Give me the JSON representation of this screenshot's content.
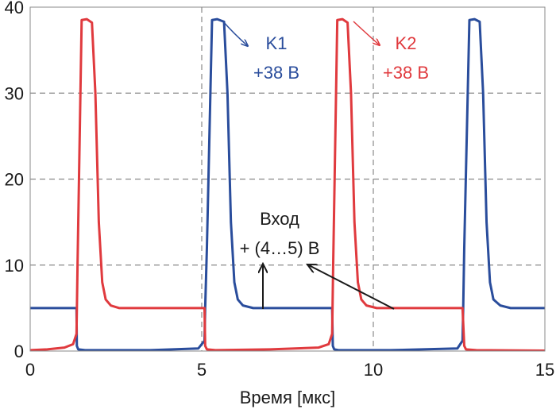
{
  "chart_data": {
    "type": "line",
    "title": "",
    "xlabel": "Время [мкс]",
    "ylabel": "",
    "xlim": [
      0,
      15
    ],
    "ylim": [
      0,
      40
    ],
    "x_ticks": [
      "0",
      "5",
      "10",
      "15"
    ],
    "y_ticks": [
      "0",
      "10",
      "20",
      "30",
      "40"
    ],
    "grid": true,
    "colors": {
      "series_1": "#2a4d9c",
      "series_2": "#e03a3e",
      "annotation_input": "#1a1a1a"
    },
    "series": [
      {
        "x": [
          0,
          1.35,
          1.36,
          1.4,
          1.6,
          3.5,
          4.9,
          5.08,
          5.1,
          5.15,
          5.3,
          5.45,
          5.65,
          5.75,
          5.85,
          5.95,
          6.05,
          6.2,
          6.5,
          8.8,
          8.82,
          8.86,
          9.0,
          10.5,
          12.45,
          12.6,
          12.62,
          12.65,
          12.8,
          12.95,
          13.1,
          13.2,
          13.3,
          13.4,
          13.5,
          13.7,
          14.0,
          15
        ],
        "y": [
          5,
          5,
          0.6,
          0.2,
          0.1,
          0.1,
          0.3,
          1.2,
          5,
          12,
          38.5,
          38.6,
          38.3,
          30,
          15,
          8,
          6,
          5.3,
          5,
          5,
          0.6,
          0.2,
          0.1,
          0.1,
          0.3,
          1.2,
          5,
          12,
          38.5,
          38.6,
          38.3,
          30,
          15,
          8,
          6,
          5.3,
          5,
          5
        ]
      },
      {
        "x": [
          0,
          0.5,
          1.0,
          1.25,
          1.35,
          1.38,
          1.5,
          1.65,
          1.8,
          1.9,
          2.0,
          2.1,
          2.2,
          2.35,
          2.6,
          5.0,
          5.08,
          5.1,
          5.15,
          5.4,
          7.0,
          8.4,
          8.7,
          8.8,
          8.83,
          8.95,
          9.1,
          9.25,
          9.35,
          9.45,
          9.55,
          9.65,
          9.8,
          10.1,
          12.55,
          12.6,
          12.65,
          12.7,
          13.0,
          15
        ],
        "y": [
          0.1,
          0.2,
          0.4,
          0.8,
          2,
          10,
          38.5,
          38.6,
          38.2,
          30,
          15,
          8,
          6,
          5.3,
          5,
          5,
          5,
          0.6,
          0.2,
          0.1,
          0.2,
          0.4,
          0.8,
          2,
          10,
          38.5,
          38.6,
          38.2,
          30,
          15,
          8,
          6,
          5.3,
          5,
          5,
          5,
          0.6,
          0.2,
          0.1,
          0.05
        ]
      }
    ],
    "annotations": [
      {
        "id": "k1",
        "lines": [
          "K1",
          "+38 В"
        ]
      },
      {
        "id": "k2",
        "lines": [
          "K2",
          "+38 В"
        ]
      },
      {
        "id": "input",
        "lines": [
          "Вход",
          "+ (4…5) В"
        ]
      }
    ]
  }
}
